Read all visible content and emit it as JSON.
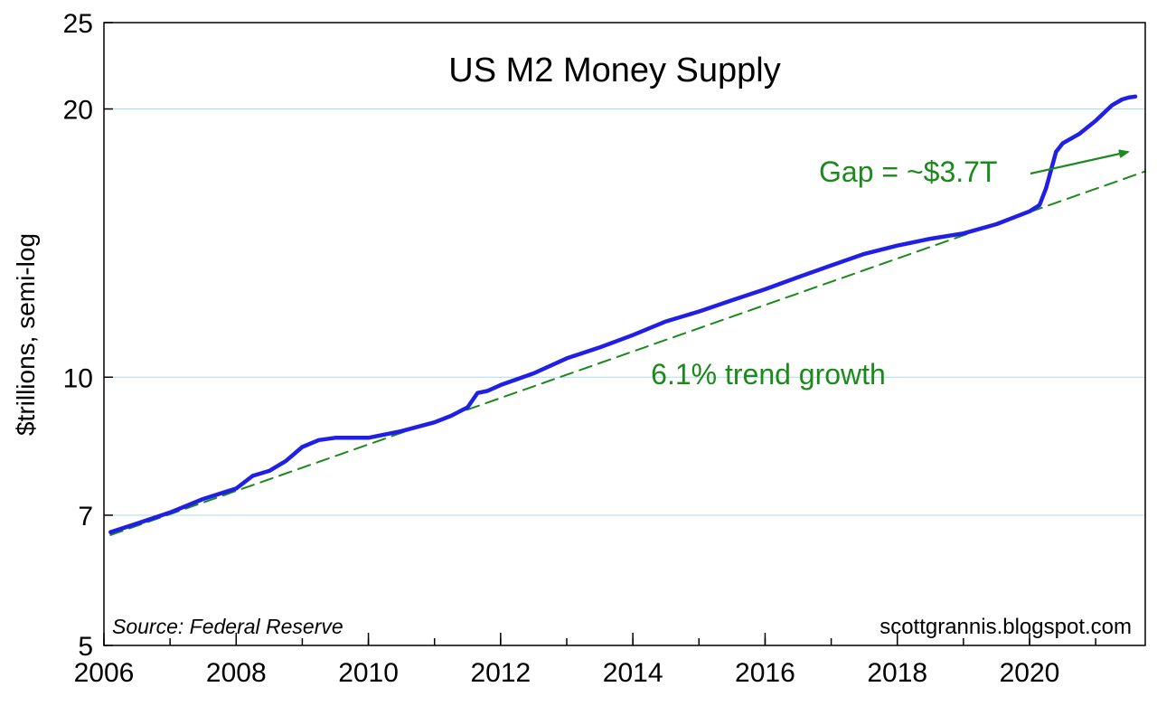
{
  "chart_data": {
    "type": "line",
    "title": "US M2 Money Supply",
    "ylabel": "$trillions, semi-log",
    "xlabel": "",
    "y_scale": "log",
    "ylim": [
      5,
      25
    ],
    "xlim": [
      2006,
      2021.75
    ],
    "y_ticks": [
      {
        "value": 5,
        "label": "5"
      },
      {
        "value": 7,
        "label": "7"
      },
      {
        "value": 10,
        "label": "10"
      },
      {
        "value": 20,
        "label": "20"
      },
      {
        "value": 25,
        "label": "25"
      }
    ],
    "x_ticks": [
      {
        "value": 2006,
        "label": "2006"
      },
      {
        "value": 2008,
        "label": "2008"
      },
      {
        "value": 2010,
        "label": "2010"
      },
      {
        "value": 2012,
        "label": "2012"
      },
      {
        "value": 2014,
        "label": "2014"
      },
      {
        "value": 2016,
        "label": "2016"
      },
      {
        "value": 2018,
        "label": "2018"
      },
      {
        "value": 2020,
        "label": "2020"
      }
    ],
    "grid": "horizontal",
    "series": [
      {
        "color": "#1f1fe6",
        "style": "solid",
        "x": [
          2006.1,
          2006.5,
          2007.0,
          2007.5,
          2008.0,
          2008.25,
          2008.5,
          2008.75,
          2009.0,
          2009.25,
          2009.5,
          2010.0,
          2010.5,
          2011.0,
          2011.25,
          2011.5,
          2011.65,
          2011.8,
          2012.0,
          2012.5,
          2013.0,
          2013.5,
          2014.0,
          2014.5,
          2015.0,
          2015.5,
          2016.0,
          2016.5,
          2017.0,
          2017.5,
          2018.0,
          2018.5,
          2019.0,
          2019.5,
          2020.0,
          2020.15,
          2020.25,
          2020.4,
          2020.5,
          2020.75,
          2021.0,
          2021.25,
          2021.4,
          2021.5,
          2021.6
        ],
        "values": [
          6.7,
          6.85,
          7.05,
          7.3,
          7.5,
          7.75,
          7.85,
          8.05,
          8.35,
          8.5,
          8.55,
          8.55,
          8.7,
          8.9,
          9.05,
          9.25,
          9.6,
          9.65,
          9.8,
          10.1,
          10.5,
          10.8,
          11.15,
          11.55,
          11.85,
          12.2,
          12.55,
          12.95,
          13.35,
          13.75,
          14.05,
          14.3,
          14.5,
          14.85,
          15.35,
          15.6,
          16.3,
          17.9,
          18.3,
          18.75,
          19.4,
          20.2,
          20.5,
          20.6,
          20.65
        ]
      },
      {
        "name": "6.1% trend growth",
        "color": "#1a8a1a",
        "style": "dashed",
        "x": [
          2006.1,
          2021.75
        ],
        "values": [
          6.65,
          17.02
        ]
      }
    ],
    "annotations": [
      {
        "text": "US M2 Money Supply",
        "role": "title"
      },
      {
        "text": "6.1% trend growth",
        "x": 2014.0,
        "y": 10.05,
        "color": "#1a8a1a"
      },
      {
        "text": "Gap = ~$3.7T",
        "x": 2020.0,
        "y": 17.3,
        "color": "#1a8a1a",
        "arrow_to": {
          "x": 2021.5,
          "y": 18.1
        }
      },
      {
        "text": "Source: Federal Reserve",
        "role": "source"
      },
      {
        "text": "scottgrannis.blogspot.com",
        "role": "credit"
      }
    ]
  }
}
